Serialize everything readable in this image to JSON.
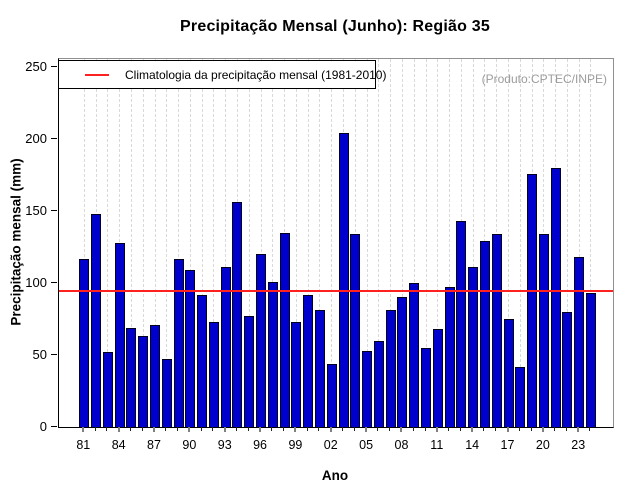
{
  "title": "Precipitação Mensal (Junho): Região 35",
  "produto_note": "(Produto:CPTEC/INPE)",
  "legend": {
    "label": "Climatologia da precipitação mensal (1981-2010)"
  },
  "x_axis": {
    "label": "Ano",
    "tick_labels": [
      "81",
      "84",
      "87",
      "90",
      "93",
      "96",
      "99",
      "02",
      "05",
      "08",
      "11",
      "14",
      "17",
      "20",
      "23"
    ]
  },
  "y_axis": {
    "label": "Precipitação mensal (mm)",
    "ticks": [
      0,
      50,
      100,
      150,
      200,
      250
    ]
  },
  "colors": {
    "bar_fill": "#0000cc",
    "bar_border": "#00001e",
    "climatology_line": "#ff2020",
    "gridline": "#d9d9d9",
    "box_border": "#909090",
    "note_text": "#9c9c9c"
  },
  "chart_data": {
    "type": "bar",
    "title": "Precipitação Mensal (Junho): Região 35",
    "xlabel": "Ano",
    "ylabel": "Precipitação mensal (mm)",
    "ylim": [
      0,
      250
    ],
    "grid": "vertical-dashed",
    "legend_position": "top-left",
    "categories": [
      "81",
      "82",
      "83",
      "84",
      "85",
      "86",
      "87",
      "88",
      "89",
      "90",
      "91",
      "92",
      "93",
      "94",
      "95",
      "96",
      "97",
      "98",
      "99",
      "00",
      "01",
      "02",
      "03",
      "04",
      "05",
      "06",
      "07",
      "08",
      "09",
      "10",
      "11",
      "12",
      "13",
      "14",
      "15",
      "16",
      "17",
      "18",
      "19",
      "20",
      "21",
      "22",
      "23",
      "24"
    ],
    "values": [
      117,
      148,
      52,
      128,
      69,
      63,
      71,
      47,
      117,
      109,
      92,
      73,
      111,
      156,
      77,
      120,
      101,
      135,
      73,
      92,
      81,
      44,
      204,
      134,
      53,
      60,
      81,
      90,
      100,
      55,
      68,
      97,
      143,
      111,
      129,
      134,
      75,
      42,
      176,
      134,
      180,
      80,
      118,
      93
    ],
    "climatology_value": 95,
    "climatology_label": "Climatologia da precipitação mensal (1981-2010)"
  }
}
